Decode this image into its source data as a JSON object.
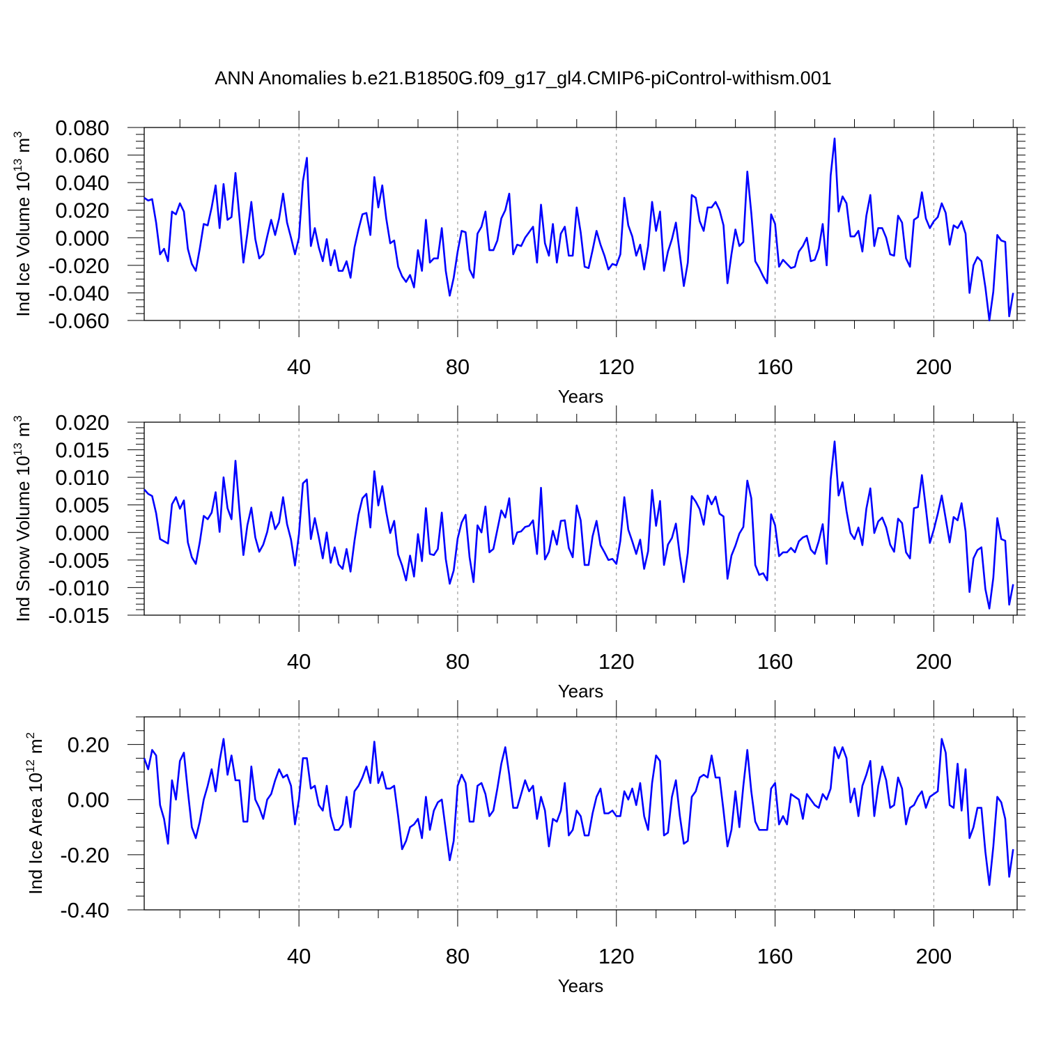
{
  "title": "ANN Anomalies b.e21.B1850G.f09_g17_gl4.CMIP6-piControl-withism.001",
  "colors": {
    "series": "#0000ff",
    "axis": "#000000",
    "gridline": "#888888",
    "background": "#ffffff"
  },
  "chart_data": [
    {
      "type": "line",
      "title": "",
      "xlabel": "Years",
      "ylabel": {
        "base": "Ind Ice Volume 10",
        "exponent": "13",
        "unit": "m",
        "unit_exponent": "3"
      },
      "xlim": [
        1,
        221
      ],
      "ylim": [
        -0.06,
        0.08
      ],
      "xticks": [
        40,
        80,
        120,
        160,
        200
      ],
      "xtick_labels": [
        "40",
        "80",
        "120",
        "160",
        "200"
      ],
      "yticks": [
        -0.06,
        -0.04,
        -0.02,
        0.0,
        0.02,
        0.04,
        0.06,
        0.08
      ],
      "ytick_labels": [
        "-0.060",
        "-0.040",
        "-0.020",
        "0.000",
        "0.020",
        "0.040",
        "0.060",
        "0.080"
      ],
      "grid": "vertical dashed at major x ticks",
      "legend": "none",
      "series": [
        {
          "color": "#0000ff",
          "x_start": 1,
          "x_step": 1,
          "values": [
            0.029,
            0.027,
            0.028,
            0.011,
            -0.012,
            -0.008,
            -0.017,
            0.019,
            0.017,
            0.025,
            0.019,
            -0.008,
            -0.019,
            -0.024,
            -0.008,
            0.01,
            0.009,
            0.022,
            0.038,
            0.007,
            0.039,
            0.013,
            0.015,
            0.047,
            0.015,
            -0.018,
            0.003,
            0.026,
            -0.001,
            -0.015,
            -0.012,
            0.001,
            0.013,
            0.002,
            0.014,
            0.032,
            0.011,
            0.0,
            -0.012,
            0.0,
            0.041,
            0.058,
            -0.006,
            0.007,
            -0.007,
            -0.017,
            -0.001,
            -0.02,
            -0.009,
            -0.024,
            -0.024,
            -0.017,
            -0.029,
            -0.007,
            0.006,
            0.017,
            0.018,
            0.002,
            0.044,
            0.022,
            0.038,
            0.014,
            -0.004,
            -0.002,
            -0.021,
            -0.028,
            -0.032,
            -0.027,
            -0.036,
            -0.009,
            -0.024,
            0.013,
            -0.018,
            -0.015,
            -0.015,
            0.007,
            -0.024,
            -0.042,
            -0.029,
            -0.01,
            0.005,
            0.004,
            -0.023,
            -0.029,
            0.003,
            0.008,
            0.019,
            -0.009,
            -0.009,
            -0.002,
            0.014,
            0.02,
            0.032,
            -0.012,
            -0.005,
            -0.006,
            0.0,
            0.004,
            0.008,
            -0.018,
            0.024,
            -0.004,
            -0.013,
            0.01,
            -0.018,
            0.003,
            0.008,
            -0.013,
            -0.013,
            0.022,
            0.004,
            -0.021,
            -0.022,
            -0.009,
            0.005,
            -0.005,
            -0.013,
            -0.023,
            -0.019,
            -0.02,
            -0.012,
            0.029,
            0.009,
            0.001,
            -0.013,
            -0.005,
            -0.023,
            -0.006,
            0.026,
            0.005,
            0.019,
            -0.024,
            -0.01,
            -0.001,
            0.011,
            -0.012,
            -0.035,
            -0.018,
            0.031,
            0.029,
            0.012,
            0.005,
            0.022,
            0.022,
            0.026,
            0.02,
            0.009,
            -0.033,
            -0.012,
            0.006,
            -0.006,
            -0.003,
            0.048,
            0.018,
            -0.017,
            -0.022,
            -0.028,
            -0.033,
            0.017,
            0.01,
            -0.021,
            -0.016,
            -0.019,
            -0.022,
            -0.021,
            -0.01,
            -0.006,
            0.0,
            -0.017,
            -0.016,
            -0.008,
            0.01,
            -0.02,
            0.045,
            0.072,
            0.019,
            0.03,
            0.025,
            0.001,
            0.001,
            0.005,
            -0.01,
            0.016,
            0.031,
            -0.006,
            0.007,
            0.007,
            0.0,
            -0.012,
            -0.013,
            0.016,
            0.011,
            -0.015,
            -0.021,
            0.013,
            0.015,
            0.033,
            0.014,
            0.007,
            0.012,
            0.015,
            0.025,
            0.018,
            -0.005,
            0.009,
            0.007,
            0.012,
            0.003,
            -0.04,
            -0.02,
            -0.014,
            -0.017,
            -0.036,
            -0.06,
            -0.039,
            0.002,
            -0.002,
            -0.003,
            -0.057,
            -0.04
          ]
        }
      ]
    },
    {
      "type": "line",
      "title": "",
      "xlabel": "Years",
      "ylabel": {
        "base": "Ind Snow Volume 10",
        "exponent": "13",
        "unit": "m",
        "unit_exponent": "3"
      },
      "xlim": [
        1,
        221
      ],
      "ylim": [
        -0.015,
        0.02
      ],
      "xticks": [
        40,
        80,
        120,
        160,
        200
      ],
      "xtick_labels": [
        "40",
        "80",
        "120",
        "160",
        "200"
      ],
      "yticks": [
        -0.015,
        -0.01,
        -0.005,
        0.0,
        0.005,
        0.01,
        0.015,
        0.02
      ],
      "ytick_labels": [
        "-0.015",
        "-0.010",
        "-0.005",
        "0.000",
        "0.005",
        "0.010",
        "0.015",
        "0.020"
      ],
      "grid": "vertical dashed at major x ticks",
      "legend": "none",
      "series": [
        {
          "color": "#0000ff",
          "x_start": 1,
          "x_step": 1,
          "values": [
            0.0078,
            0.007,
            0.0066,
            0.0035,
            -0.0012,
            -0.0016,
            -0.002,
            0.0051,
            0.0064,
            0.0043,
            0.0058,
            -0.0018,
            -0.0045,
            -0.0057,
            -0.0018,
            0.003,
            0.0024,
            0.0036,
            0.0073,
            0.0001,
            0.01,
            0.0044,
            0.0024,
            0.013,
            0.004,
            -0.0041,
            0.0013,
            0.0045,
            -0.0009,
            -0.0035,
            -0.0022,
            0.0001,
            0.0037,
            0.0006,
            0.0018,
            0.0064,
            0.0015,
            -0.0013,
            -0.006,
            -0.0003,
            0.0089,
            0.0096,
            -0.0012,
            0.0026,
            -0.0009,
            -0.0047,
            0.0,
            -0.0055,
            -0.0027,
            -0.0058,
            -0.0066,
            -0.003,
            -0.0071,
            -0.0015,
            0.0032,
            0.0062,
            0.007,
            0.0009,
            0.0111,
            0.0049,
            0.0084,
            0.0037,
            -0.0001,
            0.0021,
            -0.004,
            -0.006,
            -0.0087,
            -0.0042,
            -0.008,
            -0.0003,
            -0.0052,
            0.0044,
            -0.0039,
            -0.0041,
            -0.003,
            0.0036,
            -0.0048,
            -0.0093,
            -0.0069,
            -0.0011,
            0.0018,
            0.0032,
            -0.0045,
            -0.009,
            0.0013,
            0.0,
            0.0047,
            -0.0036,
            -0.003,
            0.0005,
            0.004,
            0.0027,
            0.0062,
            -0.0021,
            0.0,
            0.0002,
            0.001,
            0.0012,
            0.0022,
            -0.0039,
            0.0081,
            -0.0049,
            -0.0035,
            0.0003,
            -0.0022,
            0.0021,
            0.0022,
            -0.0028,
            -0.0045,
            0.0049,
            0.0022,
            -0.0059,
            -0.0059,
            -0.0007,
            0.0021,
            -0.0023,
            -0.0036,
            -0.005,
            -0.0048,
            -0.0057,
            -0.0015,
            0.0064,
            0.0005,
            -0.0016,
            -0.0039,
            -0.0013,
            -0.0066,
            -0.0034,
            0.0077,
            0.0012,
            0.0057,
            -0.0059,
            -0.0022,
            -0.001,
            0.0016,
            -0.0043,
            -0.009,
            -0.0037,
            0.0066,
            0.0056,
            0.0042,
            0.0014,
            0.0067,
            0.0051,
            0.0065,
            0.0034,
            0.0029,
            -0.0084,
            -0.0042,
            -0.0024,
            -0.0002,
            0.001,
            0.0094,
            0.0062,
            -0.0059,
            -0.0077,
            -0.0074,
            -0.0087,
            0.0033,
            0.0013,
            -0.0043,
            -0.0036,
            -0.0036,
            -0.0028,
            -0.0036,
            -0.0016,
            -0.0009,
            -0.0006,
            -0.0031,
            -0.0039,
            -0.0016,
            0.0015,
            -0.0057,
            0.0096,
            0.0165,
            0.0067,
            0.0091,
            0.0039,
            -0.0001,
            -0.0012,
            0.0009,
            -0.0023,
            0.0043,
            0.008,
            -0.0001,
            0.002,
            0.0027,
            0.0009,
            -0.0022,
            -0.0035,
            0.0025,
            0.0017,
            -0.0036,
            -0.0047,
            0.0044,
            0.0046,
            0.0104,
            0.0044,
            -0.0019,
            0.0005,
            0.0034,
            0.0067,
            0.0025,
            -0.0018,
            0.0028,
            0.0022,
            0.0053,
            0.0002,
            -0.0108,
            -0.0047,
            -0.0032,
            -0.0027,
            -0.0103,
            -0.0138,
            -0.0082,
            0.0026,
            -0.0012,
            -0.0015,
            -0.0131,
            -0.0094
          ]
        }
      ]
    },
    {
      "type": "line",
      "title": "",
      "xlabel": "Years",
      "ylabel": {
        "base": "Ind Ice Area 10",
        "exponent": "12",
        "unit": "m",
        "unit_exponent": "2"
      },
      "xlim": [
        1,
        221
      ],
      "ylim": [
        -0.4,
        0.3
      ],
      "xticks": [
        40,
        80,
        120,
        160,
        200
      ],
      "xtick_labels": [
        "40",
        "80",
        "120",
        "160",
        "200"
      ],
      "yticks": [
        -0.4,
        -0.2,
        0.0,
        0.2
      ],
      "ytick_labels": [
        "-0.40",
        "-0.20",
        "0.00",
        "0.20"
      ],
      "grid": "vertical dashed at major x ticks",
      "legend": "none",
      "series": [
        {
          "color": "#0000ff",
          "x_start": 1,
          "x_step": 1,
          "values": [
            0.15,
            0.11,
            0.18,
            0.16,
            -0.02,
            -0.07,
            -0.16,
            0.07,
            0.0,
            0.14,
            0.17,
            0.03,
            -0.1,
            -0.14,
            -0.08,
            0.0,
            0.05,
            0.11,
            0.03,
            0.14,
            0.22,
            0.09,
            0.16,
            0.07,
            0.07,
            -0.08,
            -0.08,
            0.12,
            0.0,
            -0.03,
            -0.07,
            0.0,
            0.02,
            0.07,
            0.11,
            0.08,
            0.09,
            0.05,
            -0.09,
            0.0,
            0.15,
            0.15,
            0.04,
            0.05,
            -0.02,
            -0.04,
            0.05,
            -0.06,
            -0.11,
            -0.11,
            -0.09,
            0.01,
            -0.1,
            0.03,
            0.05,
            0.08,
            0.12,
            0.06,
            0.21,
            0.06,
            0.1,
            0.04,
            0.04,
            0.05,
            -0.06,
            -0.18,
            -0.15,
            -0.1,
            -0.09,
            -0.07,
            -0.14,
            0.01,
            -0.11,
            -0.04,
            -0.01,
            0.0,
            -0.11,
            -0.22,
            -0.15,
            0.05,
            0.09,
            0.06,
            -0.08,
            -0.08,
            0.05,
            0.06,
            0.02,
            -0.06,
            -0.04,
            0.04,
            0.13,
            0.19,
            0.09,
            -0.03,
            -0.03,
            0.02,
            0.07,
            0.03,
            0.05,
            -0.07,
            0.01,
            -0.04,
            -0.17,
            -0.07,
            -0.08,
            -0.04,
            0.06,
            -0.13,
            -0.11,
            -0.04,
            -0.06,
            -0.13,
            -0.13,
            -0.05,
            0.01,
            0.04,
            -0.05,
            -0.05,
            -0.04,
            -0.06,
            -0.06,
            0.03,
            0.0,
            0.04,
            -0.02,
            0.06,
            -0.06,
            -0.11,
            0.06,
            0.16,
            0.14,
            -0.13,
            -0.12,
            0.01,
            0.07,
            -0.06,
            -0.16,
            -0.15,
            0.01,
            0.03,
            0.08,
            0.09,
            0.08,
            0.16,
            0.08,
            0.08,
            -0.04,
            -0.17,
            -0.11,
            0.03,
            -0.1,
            0.05,
            0.18,
            0.03,
            -0.08,
            -0.11,
            -0.11,
            -0.11,
            0.04,
            0.06,
            -0.09,
            -0.06,
            -0.09,
            0.02,
            0.01,
            0.0,
            -0.07,
            0.02,
            0.0,
            -0.02,
            -0.03,
            0.02,
            0.0,
            0.04,
            0.19,
            0.15,
            0.19,
            0.15,
            -0.01,
            0.04,
            -0.06,
            0.05,
            0.09,
            0.14,
            -0.06,
            0.05,
            0.12,
            0.07,
            -0.03,
            -0.02,
            0.08,
            0.04,
            -0.09,
            -0.03,
            -0.02,
            0.01,
            0.03,
            -0.03,
            0.01,
            0.02,
            0.03,
            0.22,
            0.17,
            -0.02,
            -0.03,
            0.13,
            -0.04,
            0.11,
            -0.14,
            -0.1,
            -0.03,
            -0.03,
            -0.19,
            -0.31,
            -0.17,
            0.01,
            -0.01,
            -0.07,
            -0.28,
            -0.18
          ]
        }
      ]
    }
  ]
}
